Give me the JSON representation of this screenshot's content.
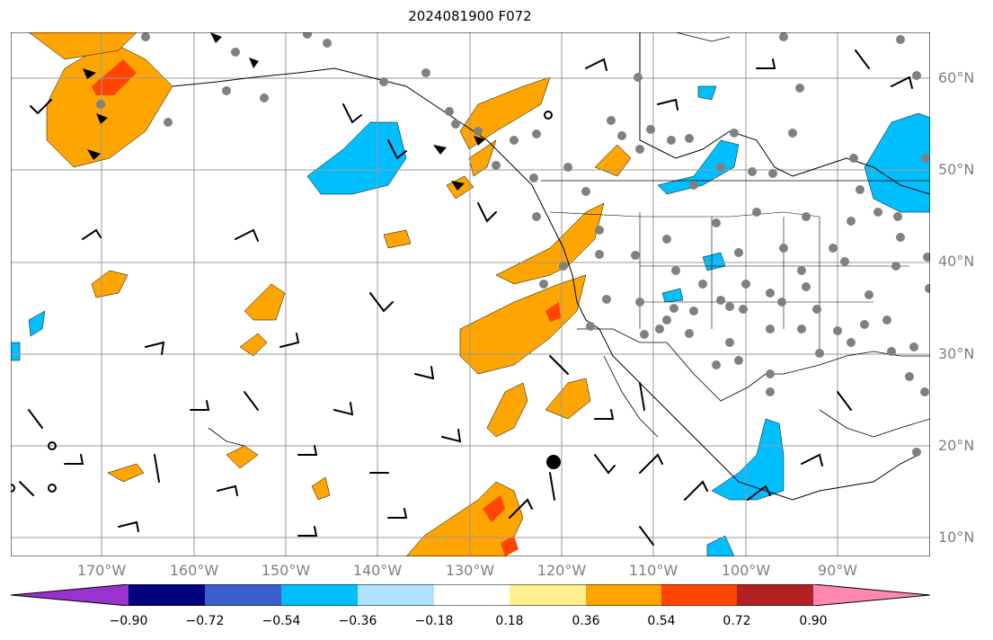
{
  "title": "2024081900 F072",
  "lat_labels": [
    "60°N",
    "50°N",
    "40°N",
    "30°N",
    "20°N",
    "10°N"
  ],
  "lon_labels": [
    "170°W",
    "160°W",
    "150°W",
    "140°W",
    "130°W",
    "120°W",
    "110°W",
    "100°W",
    "90°W"
  ],
  "colorbar": {
    "ticks": [
      "−0.90",
      "−0.72",
      "−0.54",
      "−0.36",
      "−0.18",
      "0.18",
      "0.36",
      "0.54",
      "0.72",
      "0.90"
    ],
    "colors": [
      "#9a32cd",
      "#000080",
      "#3a5fcd",
      "#00bfff",
      "#b0e2ff",
      "#ffffff",
      "#fff08f",
      "#ffa500",
      "#ff4500",
      "#b22222",
      "#ff88b0"
    ]
  },
  "map_style": {
    "land_outline": "#000000",
    "gridline_color": "#999999",
    "station_marker": "gray-dot",
    "wind": "barbs"
  }
}
